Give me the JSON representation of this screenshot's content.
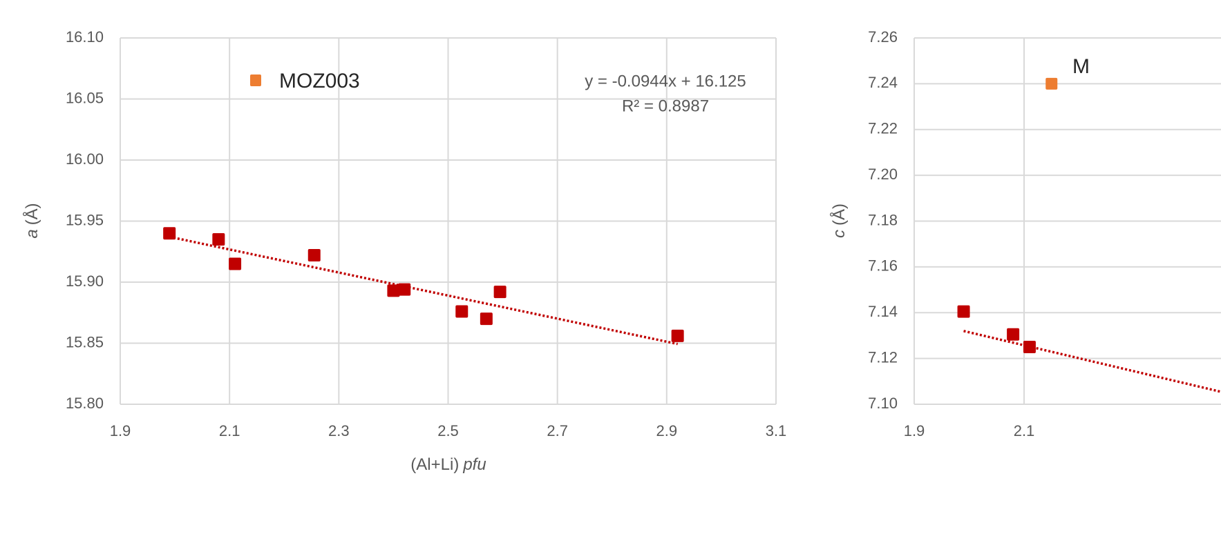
{
  "chart_data": [
    {
      "type": "scatter",
      "title": "",
      "xlabel": "(Al+Li)",
      "xlabel_italic": "pfu",
      "ylabel": "a",
      "ylabel_unit": "(Å)",
      "xlim": [
        1.9,
        3.1
      ],
      "ylim": [
        15.8,
        16.1
      ],
      "xticks": [
        "1.9",
        "2.1",
        "2.3",
        "2.5",
        "2.7",
        "2.9",
        "3.1"
      ],
      "yticks": [
        "15.80",
        "15.85",
        "15.90",
        "15.95",
        "16.00",
        "16.05",
        "16.10"
      ],
      "grid": true,
      "legend": "top-left",
      "colors": {
        "data": "#c00000",
        "highlight": "#ed7d31",
        "trendline": "#c00000",
        "grid": "#d9d9d9",
        "text": "#595959"
      },
      "series": [
        {
          "points": [
            {
              "x": 1.99,
              "y": 15.94
            },
            {
              "x": 2.08,
              "y": 15.935
            },
            {
              "x": 2.11,
              "y": 15.915
            },
            {
              "x": 2.255,
              "y": 15.922
            },
            {
              "x": 2.4,
              "y": 15.893
            },
            {
              "x": 2.42,
              "y": 15.894
            },
            {
              "x": 2.525,
              "y": 15.876
            },
            {
              "x": 2.57,
              "y": 15.87
            },
            {
              "x": 2.595,
              "y": 15.892
            },
            {
              "x": 2.92,
              "y": 15.856
            }
          ]
        },
        {
          "name": "MOZ003",
          "points": []
        }
      ],
      "trendline": {
        "slope": -0.0944,
        "intercept": 16.125,
        "x_range": [
          1.99,
          2.92
        ],
        "equation": "y = -0.0944x + 16.125",
        "r2": "R² = 0.8987"
      }
    },
    {
      "type": "scatter",
      "title": "",
      "xlabel": "",
      "ylabel": "c",
      "ylabel_unit": "(Å)",
      "xlim": [
        1.9,
        2.3
      ],
      "ylim": [
        7.1,
        7.26
      ],
      "xticks": [
        "1.9",
        "2.1"
      ],
      "yticks": [
        "7.10",
        "7.12",
        "7.14",
        "7.16",
        "7.18",
        "7.20",
        "7.22",
        "7.24",
        "7.26"
      ],
      "grid": true,
      "legend": "top-left",
      "series": [
        {
          "points": [
            {
              "x": 1.99,
              "y": 7.1405
            },
            {
              "x": 2.08,
              "y": 7.1305
            },
            {
              "x": 2.11,
              "y": 7.125
            }
          ]
        },
        {
          "name": "M",
          "points": [
            {
              "x": 2.15,
              "y": 7.24
            }
          ]
        }
      ],
      "trendline": {
        "start": {
          "x": 1.99,
          "y": 7.132
        },
        "slope": -0.0567
      }
    }
  ]
}
